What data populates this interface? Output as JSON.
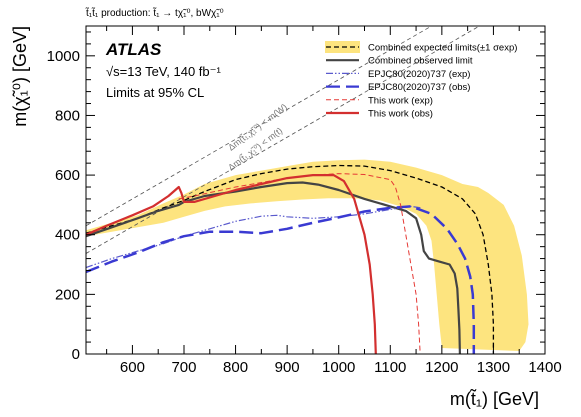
{
  "chart_data": {
    "type": "line",
    "header": "t̃₁t̃₁ production: t̃₁ → tχ̃₁⁰, bWχ̃₁⁰",
    "experiment": "ATLAS",
    "energy_lumi": "√s=13 TeV, 140 fb⁻¹",
    "limits_note": "Limits at 95% CL",
    "xlabel": "m(t̃₁) [GeV]",
    "ylabel": "m(χ̃₁⁰) [GeV]",
    "xlim": [
      510,
      1400
    ],
    "ylim": [
      0,
      1100
    ],
    "xticks": [
      600,
      700,
      800,
      900,
      1000,
      1100,
      1200,
      1300,
      1400
    ],
    "yticks": [
      0,
      200,
      400,
      600,
      800,
      1000
    ],
    "diagonal_labels": [
      "Δm(t̃₁,χ̃₁⁰) < m(W)",
      "Δm(t̃₁,χ̃₁⁰) < m(t)"
    ],
    "legend_position": "top-right",
    "band": {
      "name": "Combined expected limits(±1 σexp)",
      "color": "#fde47f",
      "upper": [
        [
          510,
          415
        ],
        [
          560,
          440
        ],
        [
          610,
          465
        ],
        [
          660,
          505
        ],
        [
          700,
          535
        ],
        [
          740,
          570
        ],
        [
          800,
          600
        ],
        [
          850,
          615
        ],
        [
          900,
          630
        ],
        [
          950,
          645
        ],
        [
          1000,
          650
        ],
        [
          1050,
          652
        ],
        [
          1100,
          645
        ],
        [
          1150,
          625
        ],
        [
          1200,
          600
        ],
        [
          1240,
          570
        ],
        [
          1270,
          560
        ],
        [
          1290,
          540
        ],
        [
          1320,
          500
        ],
        [
          1340,
          430
        ],
        [
          1355,
          330
        ],
        [
          1365,
          200
        ],
        [
          1368,
          100
        ],
        [
          1362,
          40
        ],
        [
          1350,
          10
        ]
      ],
      "lower": [
        [
          510,
          395
        ],
        [
          560,
          410
        ],
        [
          610,
          425
        ],
        [
          660,
          440
        ],
        [
          700,
          460
        ],
        [
          740,
          480
        ],
        [
          780,
          495
        ],
        [
          830,
          505
        ],
        [
          880,
          512
        ],
        [
          930,
          518
        ],
        [
          980,
          522
        ],
        [
          1030,
          522
        ],
        [
          1080,
          515
        ],
        [
          1120,
          495
        ],
        [
          1150,
          470
        ],
        [
          1170,
          430
        ],
        [
          1180,
          380
        ],
        [
          1185,
          300
        ],
        [
          1190,
          200
        ],
        [
          1195,
          100
        ],
        [
          1200,
          20
        ]
      ]
    },
    "series": [
      {
        "name": "Combined expected limits(±1 σexp)",
        "color": "#000000",
        "style": "dashed",
        "width": 1.3,
        "points": [
          [
            510,
            405
          ],
          [
            560,
            430
          ],
          [
            610,
            455
          ],
          [
            660,
            490
          ],
          [
            700,
            515
          ],
          [
            740,
            545
          ],
          [
            800,
            585
          ],
          [
            850,
            605
          ],
          [
            900,
            620
          ],
          [
            950,
            628
          ],
          [
            1000,
            632
          ],
          [
            1050,
            630
          ],
          [
            1100,
            615
          ],
          [
            1150,
            590
          ],
          [
            1200,
            560
          ],
          [
            1240,
            520
          ],
          [
            1265,
            470
          ],
          [
            1280,
            400
          ],
          [
            1290,
            300
          ],
          [
            1297,
            200
          ],
          [
            1300,
            100
          ],
          [
            1300,
            0
          ]
        ]
      },
      {
        "name": "Combined observed limit",
        "color": "#444444",
        "style": "solid",
        "width": 2.2,
        "points": [
          [
            510,
            395
          ],
          [
            560,
            425
          ],
          [
            610,
            455
          ],
          [
            650,
            480
          ],
          [
            690,
            500
          ],
          [
            700,
            510
          ],
          [
            740,
            530
          ],
          [
            800,
            545
          ],
          [
            850,
            560
          ],
          [
            900,
            573
          ],
          [
            930,
            575
          ],
          [
            960,
            568
          ],
          [
            1000,
            550
          ],
          [
            1050,
            520
          ],
          [
            1100,
            495
          ],
          [
            1130,
            480
          ],
          [
            1150,
            455
          ],
          [
            1160,
            400
          ],
          [
            1165,
            345
          ],
          [
            1175,
            320
          ],
          [
            1195,
            310
          ],
          [
            1215,
            300
          ],
          [
            1225,
            270
          ],
          [
            1230,
            220
          ],
          [
            1232,
            150
          ],
          [
            1234,
            80
          ],
          [
            1235,
            0
          ]
        ]
      },
      {
        "name": "EPJC80(2020)737 (exp)",
        "color": "#5a5acd",
        "style": "dashdotdot",
        "width": 1.2,
        "points": [
          [
            510,
            290
          ],
          [
            560,
            320
          ],
          [
            610,
            345
          ],
          [
            660,
            370
          ],
          [
            700,
            395
          ],
          [
            750,
            420
          ],
          [
            800,
            445
          ],
          [
            850,
            462
          ],
          [
            880,
            465
          ],
          [
            900,
            460
          ],
          [
            950,
            455
          ],
          [
            1000,
            460
          ],
          [
            1050,
            470
          ],
          [
            1100,
            485
          ],
          [
            1140,
            495
          ],
          [
            1160,
            490
          ]
        ]
      },
      {
        "name": "EPJC80(2020)737 (obs)",
        "color": "#3a3ad2",
        "style": "longdash",
        "width": 2.5,
        "points": [
          [
            510,
            275
          ],
          [
            560,
            310
          ],
          [
            610,
            340
          ],
          [
            660,
            375
          ],
          [
            700,
            395
          ],
          [
            750,
            410
          ],
          [
            800,
            410
          ],
          [
            850,
            405
          ],
          [
            900,
            420
          ],
          [
            950,
            440
          ],
          [
            1000,
            458
          ],
          [
            1050,
            478
          ],
          [
            1100,
            490
          ],
          [
            1140,
            495
          ],
          [
            1180,
            470
          ],
          [
            1210,
            420
          ],
          [
            1230,
            370
          ],
          [
            1245,
            320
          ],
          [
            1255,
            260
          ],
          [
            1260,
            200
          ],
          [
            1262,
            100
          ],
          [
            1262,
            0
          ]
        ]
      },
      {
        "name": "This work (exp)",
        "color": "#e53935",
        "style": "dashed",
        "width": 1.0,
        "points": [
          [
            690,
            520
          ],
          [
            720,
            530
          ],
          [
            760,
            545
          ],
          [
            800,
            560
          ],
          [
            850,
            575
          ],
          [
            900,
            590
          ],
          [
            950,
            600
          ],
          [
            1000,
            605
          ],
          [
            1050,
            602
          ],
          [
            1100,
            585
          ],
          [
            1110,
            560
          ],
          [
            1120,
            500
          ],
          [
            1130,
            400
          ],
          [
            1140,
            300
          ],
          [
            1150,
            200
          ],
          [
            1155,
            100
          ],
          [
            1158,
            0
          ]
        ]
      },
      {
        "name": "This work (obs)",
        "color": "#d32f2f",
        "style": "solid",
        "width": 2.2,
        "points": [
          [
            510,
            400
          ],
          [
            550,
            430
          ],
          [
            600,
            465
          ],
          [
            640,
            495
          ],
          [
            670,
            530
          ],
          [
            690,
            560
          ],
          [
            695,
            540
          ],
          [
            700,
            510
          ],
          [
            720,
            510
          ],
          [
            760,
            530
          ],
          [
            800,
            550
          ],
          [
            850,
            570
          ],
          [
            900,
            590
          ],
          [
            950,
            600
          ],
          [
            990,
            600
          ],
          [
            1010,
            580
          ],
          [
            1030,
            520
          ],
          [
            1050,
            400
          ],
          [
            1060,
            300
          ],
          [
            1066,
            200
          ],
          [
            1070,
            100
          ],
          [
            1072,
            0
          ]
        ]
      }
    ]
  }
}
